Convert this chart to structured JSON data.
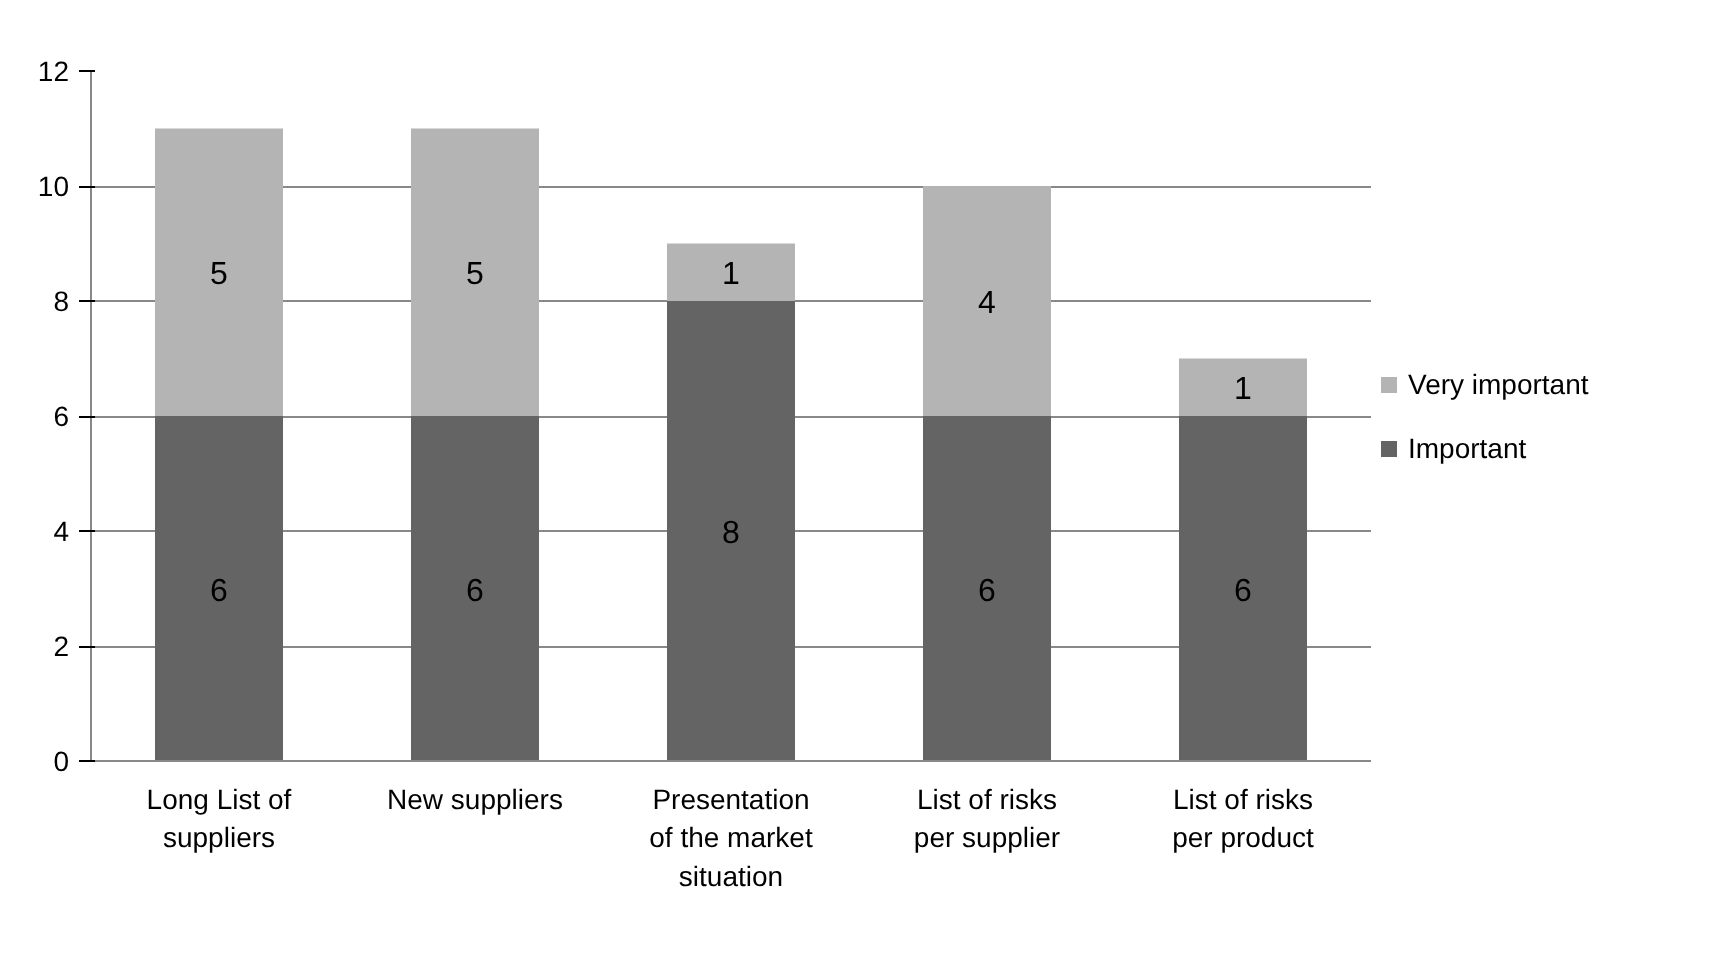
{
  "chart_data": {
    "type": "bar",
    "stacked": true,
    "categories": [
      "Long List of suppliers",
      "New suppliers",
      "Presentation of the market situation",
      "List of risks per supplier",
      "List of risks per product"
    ],
    "series": [
      {
        "name": "Important",
        "color": "#646464",
        "values": [
          6,
          6,
          8,
          6,
          6
        ]
      },
      {
        "name": "Very important",
        "color": "#b4b4b4",
        "values": [
          5,
          5,
          1,
          4,
          1
        ]
      }
    ],
    "ylim": [
      0,
      12
    ],
    "yticks": [
      0,
      2,
      4,
      6,
      8,
      10,
      12
    ],
    "grid": "y",
    "legend": "right",
    "data_labels": true
  }
}
